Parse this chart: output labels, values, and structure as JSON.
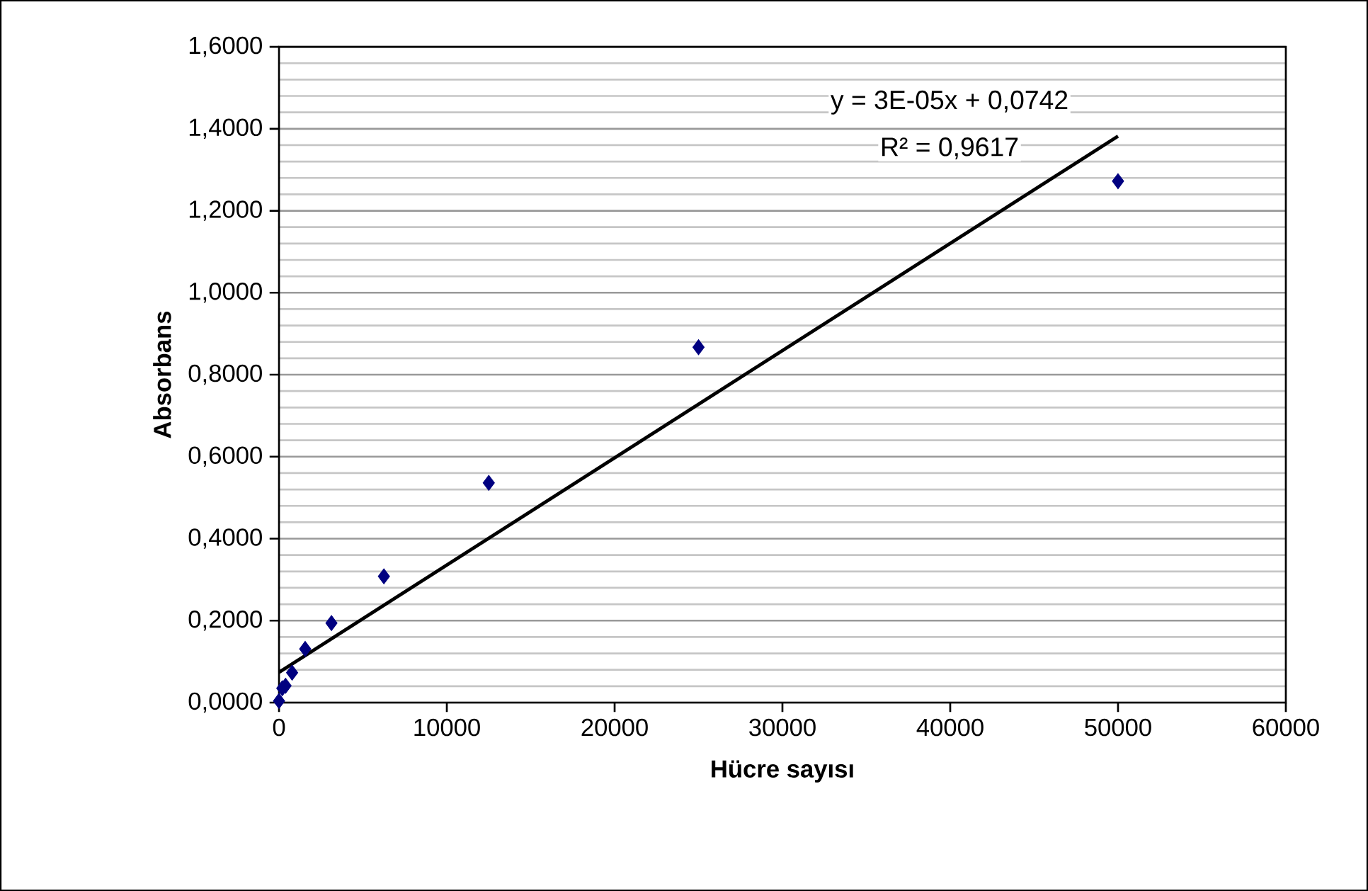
{
  "chart_data": {
    "type": "scatter",
    "xlabel": "Hücre sayısı",
    "ylabel": "Absorbans",
    "xlim": [
      0,
      60000
    ],
    "xticks": [
      0,
      10000,
      20000,
      30000,
      40000,
      50000,
      60000
    ],
    "ylim": [
      0,
      1.6
    ],
    "yticks": [
      {
        "value": 0,
        "label": "0,0000"
      },
      {
        "value": 0.2,
        "label": "0,2000"
      },
      {
        "value": 0.4,
        "label": "0,4000"
      },
      {
        "value": 0.6,
        "label": "0,6000"
      },
      {
        "value": 0.8,
        "label": "0,8000"
      },
      {
        "value": 1.0,
        "label": "1,0000"
      },
      {
        "value": 1.2,
        "label": "1,2000"
      },
      {
        "value": 1.4,
        "label": "1,4000"
      },
      {
        "value": 1.6,
        "label": "1,6000"
      }
    ],
    "grid": "y",
    "marker": "diamond",
    "annotations": [
      "y = 3E-05x  + 0,0742",
      "R² = 0,9617"
    ],
    "series": [
      {
        "type": "scatter",
        "color": "#000080",
        "x": [
          0,
          195,
          390,
          780,
          1560,
          3125,
          6250,
          12500,
          25000,
          50000
        ],
        "values": [
          0.004,
          0.035,
          0.041,
          0.073,
          0.131,
          0.194,
          0.308,
          0.536,
          0.867,
          1.272
        ]
      },
      {
        "type": "line",
        "color": "#000000",
        "marker": "none",
        "line_style": "solid",
        "x": [
          0,
          50000
        ],
        "values": [
          0.074,
          1.382
        ]
      }
    ]
  }
}
